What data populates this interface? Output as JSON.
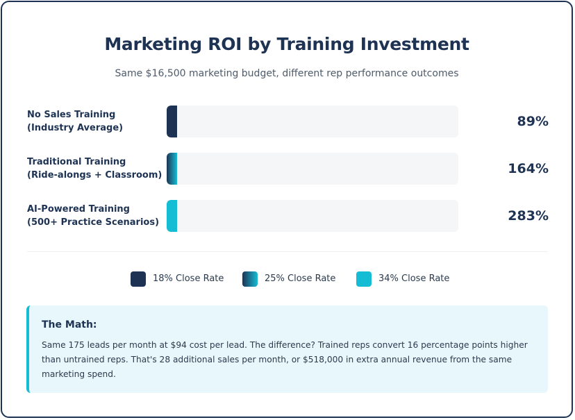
{
  "title": "Marketing ROI by Training Investment",
  "subtitle": "Same $16,500 marketing budget, different rep performance outcomes",
  "colors": {
    "navy": "#1e3354",
    "gradient_start": "#1e3354",
    "gradient_end": "#14bcd4",
    "teal": "#14bcd4",
    "track": "#f4f6f8",
    "callout_bg": "#e8f7fb"
  },
  "chart_data": {
    "type": "bar",
    "orientation": "horizontal",
    "title": "Marketing ROI by Training Investment",
    "subtitle": "Same $16,500 marketing budget, different rep performance outcomes",
    "categories": [
      [
        "No Sales Training",
        "(Industry Average)"
      ],
      [
        "Traditional Training",
        "(Ride-alongs + Classroom)"
      ],
      [
        "AI-Powered Training",
        "(500+ Practice Scenarios)"
      ]
    ],
    "values": [
      89,
      164,
      283
    ],
    "value_labels": [
      "89%",
      "164%",
      "283%"
    ],
    "bar_colors": [
      "#1e3354",
      "gradient #1e3354 to #14bcd4",
      "#14bcd4"
    ],
    "xlim": [
      0,
      8000
    ],
    "grid": false,
    "legend": {
      "placement": "bottom-center",
      "items": [
        {
          "label": "18% Close Rate",
          "color": "#1e3354"
        },
        {
          "label": "25% Close Rate",
          "color": "gradient #1e3354 to #14bcd4"
        },
        {
          "label": "34% Close Rate",
          "color": "#14bcd4"
        }
      ]
    }
  },
  "callout": {
    "title": "The Math:",
    "body": "Same 175 leads per month at $94 cost per lead. The difference? Trained reps convert 16 percentage points higher than untrained reps. That's 28 additional sales per month, or $518,000 in extra annual revenue from the same marketing spend."
  }
}
